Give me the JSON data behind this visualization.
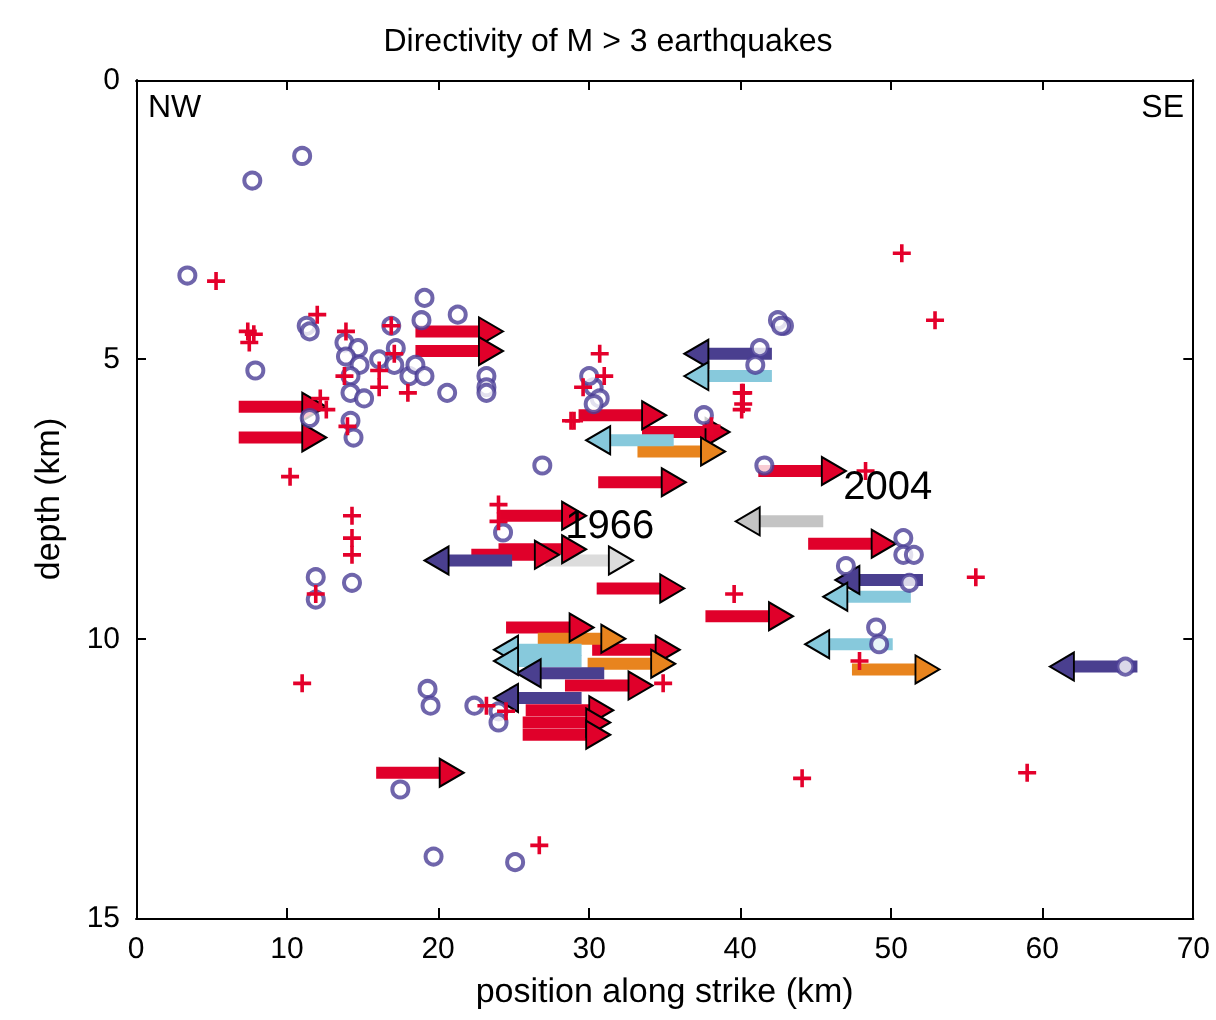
{
  "chart_data": {
    "type": "scatter",
    "title": "Directivity of M > 3 earthquakes",
    "xlabel": "position along strike (km)",
    "ylabel": "depth (km)",
    "xlim": [
      0,
      70
    ],
    "xticks": [
      0,
      10,
      20,
      30,
      40,
      50,
      60,
      70
    ],
    "ylim": [
      15,
      0
    ],
    "yticks": [
      0,
      5,
      10,
      15
    ],
    "annotations": [
      "NW",
      "SE",
      {
        "text": "1966",
        "x": 27.1,
        "y": 8.6
      },
      {
        "text": "2004",
        "x": 45.5,
        "y": 7.9
      }
    ],
    "series": [
      {
        "type": "line",
        "color": "#e0002a",
        "x": [
          6.8,
          11.8
        ],
        "values": [
          5.85,
          5.85
        ]
      },
      {
        "type": "line",
        "color": "#e0002a",
        "x": [
          6.8,
          11.8
        ],
        "values": [
          6.4,
          6.4
        ]
      },
      {
        "type": "line",
        "color": "#e0002a",
        "x": [
          18.5,
          23.5
        ],
        "values": [
          4.5,
          4.5
        ]
      },
      {
        "type": "line",
        "color": "#e0002a",
        "x": [
          18.5,
          23.5
        ],
        "values": [
          4.85,
          4.85
        ]
      },
      {
        "type": "line",
        "color": "#e0002a",
        "x": [
          29.3,
          34.3
        ],
        "values": [
          6.0,
          6.0
        ]
      },
      {
        "type": "line",
        "color": "#e0002a",
        "x": [
          33.5,
          38.5
        ],
        "values": [
          6.3,
          6.3
        ]
      },
      {
        "type": "line",
        "color": "#e0002a",
        "x": [
          30.6,
          35.6
        ],
        "values": [
          7.2,
          7.2
        ]
      },
      {
        "type": "line",
        "color": "#e0002a",
        "x": [
          24.0,
          29.0
        ],
        "values": [
          7.8,
          7.8
        ]
      },
      {
        "type": "line",
        "color": "#e0002a",
        "x": [
          24.0,
          29.0
        ],
        "values": [
          8.4,
          8.4
        ]
      },
      {
        "type": "line",
        "color": "#e0002a",
        "x": [
          22.2,
          27.2
        ],
        "values": [
          8.5,
          8.5
        ]
      },
      {
        "type": "line",
        "color": "#e0002a",
        "x": [
          30.5,
          35.5
        ],
        "values": [
          9.1,
          9.1
        ]
      },
      {
        "type": "line",
        "color": "#e0002a",
        "x": [
          37.7,
          42.7
        ],
        "values": [
          9.6,
          9.6
        ]
      },
      {
        "type": "line",
        "color": "#e0002a",
        "x": [
          41.2,
          46.2
        ],
        "values": [
          7.0,
          7.0
        ]
      },
      {
        "type": "line",
        "color": "#e0002a",
        "x": [
          44.5,
          49.5
        ],
        "values": [
          8.3,
          8.3
        ]
      },
      {
        "type": "line",
        "color": "#e0002a",
        "x": [
          30.2,
          35.2
        ],
        "values": [
          10.2,
          10.2
        ]
      },
      {
        "type": "line",
        "color": "#e0002a",
        "x": [
          25.8,
          30.8
        ],
        "values": [
          11.28,
          11.28
        ]
      },
      {
        "type": "line",
        "color": "#e0002a",
        "x": [
          25.6,
          30.6
        ],
        "values": [
          11.5,
          11.5
        ]
      },
      {
        "type": "line",
        "color": "#e0002a",
        "x": [
          25.6,
          30.6
        ],
        "values": [
          11.72,
          11.72
        ]
      },
      {
        "type": "line",
        "color": "#e0002a",
        "x": [
          15.9,
          20.9
        ],
        "values": [
          12.4,
          12.4
        ]
      },
      {
        "type": "line",
        "color": "#e0002a",
        "x": [
          24.5,
          29.5
        ],
        "values": [
          9.8,
          9.8
        ]
      },
      {
        "type": "line",
        "color": "#e0002a",
        "x": [
          28.4,
          33.4
        ],
        "values": [
          10.84,
          10.84
        ]
      },
      {
        "type": "line",
        "color": "#e8841e",
        "x": [
          33.2,
          38.2
        ],
        "values": [
          6.65,
          6.65
        ]
      },
      {
        "type": "line",
        "color": "#e8841e",
        "x": [
          26.6,
          31.6
        ],
        "values": [
          10.0,
          10.0
        ]
      },
      {
        "type": "line",
        "color": "#e8841e",
        "x": [
          29.9,
          34.9
        ],
        "values": [
          10.45,
          10.45
        ]
      },
      {
        "type": "line",
        "color": "#e8841e",
        "x": [
          47.4,
          52.4
        ],
        "values": [
          10.55,
          10.55
        ]
      },
      {
        "type": "line",
        "color": "#4a3f8f",
        "x": [
          24.9,
          19.9
        ],
        "values": [
          8.6,
          8.6
        ]
      },
      {
        "type": "line",
        "color": "#4a3f8f",
        "x": [
          42.1,
          37.1
        ],
        "values": [
          4.9,
          4.9
        ]
      },
      {
        "type": "line",
        "color": "#4a3f8f",
        "x": [
          52.1,
          47.1
        ],
        "values": [
          8.95,
          8.95
        ]
      },
      {
        "type": "line",
        "color": "#4a3f8f",
        "x": [
          66.3,
          61.3
        ],
        "values": [
          10.5,
          10.5
        ]
      },
      {
        "type": "line",
        "color": "#4a3f8f",
        "x": [
          31.0,
          26.0
        ],
        "values": [
          10.62,
          10.62
        ]
      },
      {
        "type": "line",
        "color": "#4a3f8f",
        "x": [
          29.5,
          24.5
        ],
        "values": [
          11.06,
          11.06
        ]
      },
      {
        "type": "line",
        "color": "#87c9dc",
        "x": [
          42.1,
          37.1
        ],
        "values": [
          5.3,
          5.3
        ]
      },
      {
        "type": "line",
        "color": "#87c9dc",
        "x": [
          51.3,
          46.3
        ],
        "values": [
          9.25,
          9.25
        ]
      },
      {
        "type": "line",
        "color": "#87c9dc",
        "x": [
          50.1,
          45.1
        ],
        "values": [
          10.1,
          10.1
        ]
      },
      {
        "type": "line",
        "color": "#87c9dc",
        "x": [
          35.6,
          30.6
        ],
        "values": [
          6.45,
          6.45
        ]
      },
      {
        "type": "line",
        "color": "#87c9dc",
        "x": [
          29.5,
          24.5
        ],
        "values": [
          10.2,
          10.2
        ]
      },
      {
        "type": "line",
        "color": "#87c9dc",
        "x": [
          29.5,
          24.5
        ],
        "values": [
          10.4,
          10.4
        ]
      },
      {
        "type": "line",
        "color": "#dcdcdc",
        "x": [
          27.1,
          32.1
        ],
        "values": [
          8.6,
          8.6
        ]
      },
      {
        "type": "line",
        "color": "#c4c4c4",
        "x": [
          45.5,
          40.5
        ],
        "values": [
          7.9,
          7.9
        ]
      },
      {
        "marker": "circle",
        "color": "#4b3f96",
        "x": [
          7.7,
          11.0,
          3.4,
          11.3,
          11.5,
          7.9,
          13.8,
          14.7,
          13.9,
          14.8,
          14.2,
          14.2,
          15.1,
          14.2,
          14.4,
          11.5,
          16.1,
          17.1,
          16.9,
          17.2,
          18.1,
          18.5,
          19.1,
          18.9,
          19.1,
          20.6,
          23.2,
          23.2,
          23.2,
          21.3,
          26.9,
          30.3,
          30.0,
          30.7,
          30.3,
          37.6,
          24.3,
          42.9,
          41.6,
          41.3,
          42.5,
          42.7,
          41.0,
          50.8,
          50.8,
          51.5,
          47.0,
          51.2,
          49.0,
          49.2,
          65.5,
          11.9,
          11.9,
          14.3,
          19.3,
          19.5,
          22.4,
          24.0,
          24.0,
          17.5,
          19.7,
          25.1
        ],
        "values": [
          1.8,
          1.36,
          3.5,
          4.4,
          4.5,
          5.2,
          4.7,
          4.8,
          4.95,
          5.1,
          5.3,
          5.6,
          5.7,
          6.1,
          6.4,
          6.05,
          5.0,
          5.1,
          4.4,
          4.8,
          5.3,
          5.1,
          5.3,
          4.3,
          3.9,
          5.6,
          5.3,
          5.5,
          5.6,
          4.2,
          6.9,
          5.5,
          5.3,
          5.7,
          5.8,
          6.0,
          8.1,
          4.4,
          6.9,
          4.8,
          4.3,
          4.4,
          5.1,
          8.2,
          8.5,
          8.5,
          8.7,
          9.0,
          9.8,
          10.1,
          10.5,
          8.9,
          9.3,
          9.0,
          10.9,
          11.2,
          11.2,
          11.3,
          11.5,
          12.7,
          13.9,
          14.0
        ]
      },
      {
        "marker": "cross",
        "color": "#e4002b",
        "x": [
          5.3,
          7.4,
          7.8,
          7.5,
          12.0,
          13.9,
          16.9,
          13.8,
          16.1,
          16.1,
          17.1,
          18.0,
          12.2,
          12.6,
          14.0,
          10.2,
          30.7,
          31.0,
          29.6,
          29.0,
          24.0,
          14.3,
          28.8,
          38.1,
          40.2,
          40.2,
          24.0,
          39.6,
          34.9,
          50.7,
          52.9,
          40.1,
          40.1,
          48.3,
          55.6,
          47.9,
          44.1,
          59.0,
          14.3,
          14.3,
          11.9,
          11.0,
          23.2,
          24.5,
          26.7
        ],
        "values": [
          3.6,
          4.5,
          4.55,
          4.7,
          4.2,
          4.5,
          4.4,
          5.3,
          5.2,
          5.5,
          4.9,
          5.6,
          5.7,
          5.9,
          6.2,
          7.1,
          4.9,
          5.3,
          5.5,
          6.1,
          7.6,
          7.8,
          6.1,
          6.2,
          5.6,
          5.8,
          7.9,
          9.2,
          10.8,
          3.1,
          4.3,
          5.6,
          5.9,
          7.0,
          8.9,
          10.4,
          12.5,
          12.4,
          8.2,
          8.5,
          9.2,
          10.8,
          11.2,
          11.3,
          13.7
        ]
      }
    ]
  }
}
